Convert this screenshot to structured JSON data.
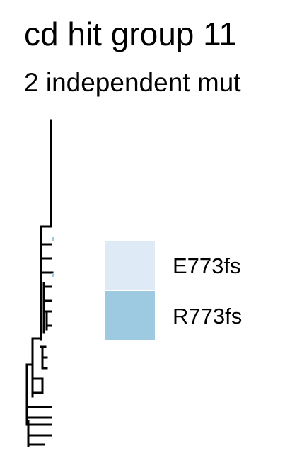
{
  "chart_data": {
    "type": "tree",
    "title": "cd hit group 11",
    "subtitle": "2 independent mut",
    "legend": {
      "placement": "right",
      "entries": [
        {
          "label": "E773fs",
          "color": "#deebf7"
        },
        {
          "label": "R773fs",
          "color": "#9ecae1"
        }
      ]
    },
    "tree": {
      "leaf_count": 19,
      "stroke_color": "#000000",
      "tip_color_note": "R773fs"
    }
  }
}
